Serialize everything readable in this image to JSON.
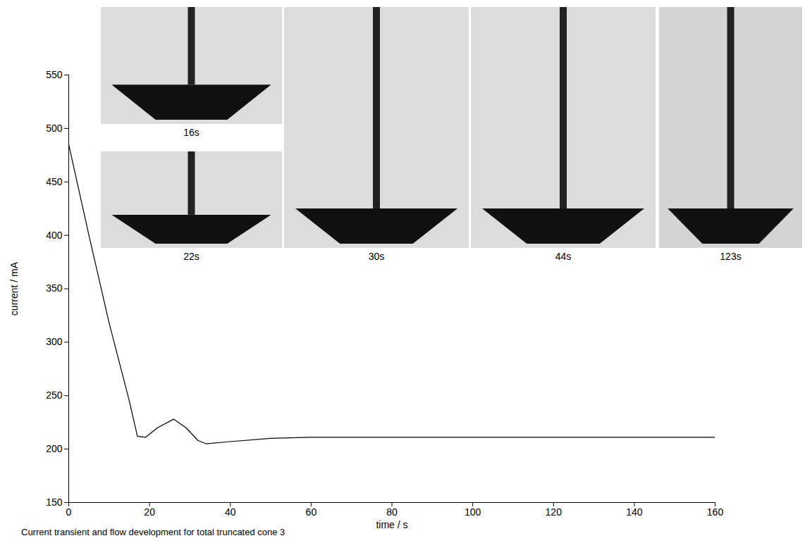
{
  "chart_data": {
    "type": "line",
    "caption": "Current transient and flow development for total truncated cone 3",
    "x_label": "time / s",
    "y_label": "current / mA",
    "x": [
      0,
      5,
      10,
      15,
      17,
      19,
      22,
      26,
      29,
      32,
      34,
      40,
      50,
      60,
      80,
      100,
      120,
      140,
      160
    ],
    "values": [
      485,
      400,
      318,
      245,
      212,
      211,
      220,
      228,
      220,
      208,
      205,
      207,
      210,
      211,
      211,
      211,
      211,
      211,
      211
    ],
    "color": "#000000",
    "xlim": [
      0,
      160
    ],
    "xticks": [
      0,
      20,
      40,
      60,
      80,
      100,
      120,
      140,
      160
    ],
    "ylim": [
      150,
      550
    ],
    "yticks": [
      150,
      200,
      250,
      300,
      350,
      400,
      450,
      500,
      550
    ],
    "grid": false,
    "insets": [
      {
        "label": "16s"
      },
      {
        "label": "22s"
      },
      {
        "label": "30s"
      },
      {
        "label": "44s"
      },
      {
        "label": "123s"
      }
    ]
  }
}
